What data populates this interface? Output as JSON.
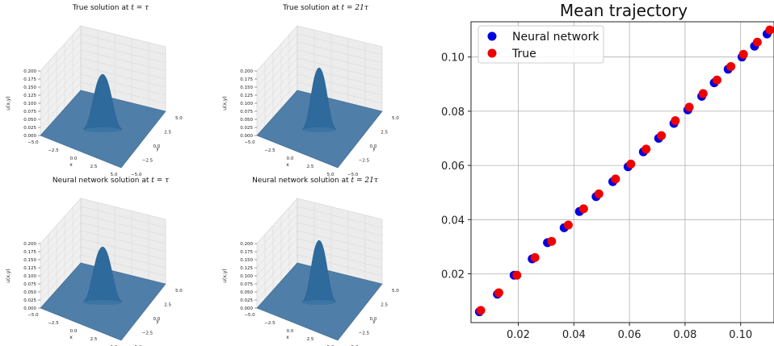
{
  "chart_data": [
    {
      "type": "surface",
      "title_prefix": "True solution at ",
      "title_math": "t = τ",
      "xlabel": "x",
      "ylabel": "y",
      "zlabel": "u(x,y)",
      "xticks": [
        "−5.0",
        "−2.5",
        "0.0",
        "2.5",
        "5.0"
      ],
      "yticks": [
        "5.0",
        "2.5",
        "0.0",
        "−2.5",
        "−5.0"
      ],
      "zticks": [
        "0.000",
        "0.025",
        "0.050",
        "0.075",
        "0.100",
        "0.125",
        "0.150",
        "0.175",
        "0.200"
      ],
      "zlim": [
        0,
        0.2
      ],
      "peak": 0.17
    },
    {
      "type": "surface",
      "title_prefix": "True solution at ",
      "title_math": "t = 21τ",
      "xlabel": "x",
      "ylabel": "y",
      "zlabel": "u(x,y)",
      "xticks": [
        "−5.0",
        "−2.5",
        "0.0",
        "2.5",
        "5.0"
      ],
      "yticks": [
        "5.0",
        "2.5",
        "0.0",
        "−2.5",
        "−5.0"
      ],
      "zticks": [
        "0.000",
        "0.025",
        "0.050",
        "0.075",
        "0.100",
        "0.125",
        "0.150",
        "0.175",
        "0.200"
      ],
      "zlim": [
        0,
        0.2
      ],
      "peak": 0.19
    },
    {
      "type": "surface",
      "title_prefix": "Neural network solution at ",
      "title_math": "t = τ",
      "xlabel": "x",
      "ylabel": "y",
      "zlabel": "u(x,y)",
      "xticks": [
        "−5.0",
        "−2.5",
        "0.0",
        "2.5",
        "5.0"
      ],
      "yticks": [
        "5.0",
        "2.5",
        "0.0",
        "−2.5",
        "−5.0"
      ],
      "zticks": [
        "0.000",
        "0.025",
        "0.050",
        "0.075",
        "0.100",
        "0.125",
        "0.150",
        "0.175",
        "0.200"
      ],
      "zlim": [
        0,
        0.2
      ],
      "peak": 0.17
    },
    {
      "type": "surface",
      "title_prefix": "Neural network solution at ",
      "title_math": "t = 21τ",
      "xlabel": "x",
      "ylabel": "y",
      "zlabel": "u(x,y)",
      "xticks": [
        "−5.0",
        "−2.5",
        "0.0",
        "2.5",
        "5.0"
      ],
      "yticks": [
        "5.0",
        "2.5",
        "0.0",
        "−2.5",
        "−5.0"
      ],
      "zticks": [
        "0.000",
        "0.025",
        "0.050",
        "0.075",
        "0.100",
        "0.125",
        "0.150",
        "0.175",
        "0.200"
      ],
      "zlim": [
        0,
        0.2
      ],
      "peak": 0.19
    },
    {
      "type": "scatter",
      "title": "Mean trajectory",
      "xlim": [
        0.003,
        0.112
      ],
      "ylim": [
        0.002,
        0.113
      ],
      "xticks": [
        0.02,
        0.04,
        0.06,
        0.08,
        0.1
      ],
      "yticks": [
        0.02,
        0.04,
        0.06,
        0.08,
        0.1
      ],
      "tick_labels": [
        "0.02",
        "0.04",
        "0.06",
        "0.08",
        "0.10"
      ],
      "grid": true,
      "legend_position": "top-left",
      "series": [
        {
          "name": "Neural network",
          "color": "#0000e0",
          "x": [
            0.006,
            0.0125,
            0.0185,
            0.025,
            0.0305,
            0.0365,
            0.042,
            0.048,
            0.054,
            0.0595,
            0.065,
            0.0705,
            0.076,
            0.081,
            0.086,
            0.0905,
            0.0955,
            0.1005,
            0.105,
            0.1095
          ],
          "y": [
            0.006,
            0.0125,
            0.0195,
            0.0255,
            0.0315,
            0.037,
            0.043,
            0.0485,
            0.054,
            0.0595,
            0.065,
            0.07,
            0.0755,
            0.0805,
            0.0855,
            0.0905,
            0.0955,
            0.1,
            0.104,
            0.1085
          ]
        },
        {
          "name": "True",
          "color": "#ee0000",
          "x": [
            0.0065,
            0.013,
            0.0195,
            0.026,
            0.032,
            0.038,
            0.0435,
            0.049,
            0.055,
            0.0605,
            0.066,
            0.0715,
            0.0765,
            0.0815,
            0.0865,
            0.0915,
            0.0965,
            0.101,
            0.106,
            0.1105
          ],
          "y": [
            0.0065,
            0.013,
            0.0195,
            0.026,
            0.032,
            0.038,
            0.044,
            0.0495,
            0.055,
            0.0605,
            0.066,
            0.071,
            0.0765,
            0.0815,
            0.0865,
            0.0915,
            0.0965,
            0.101,
            0.1055,
            0.11
          ]
        }
      ]
    }
  ]
}
